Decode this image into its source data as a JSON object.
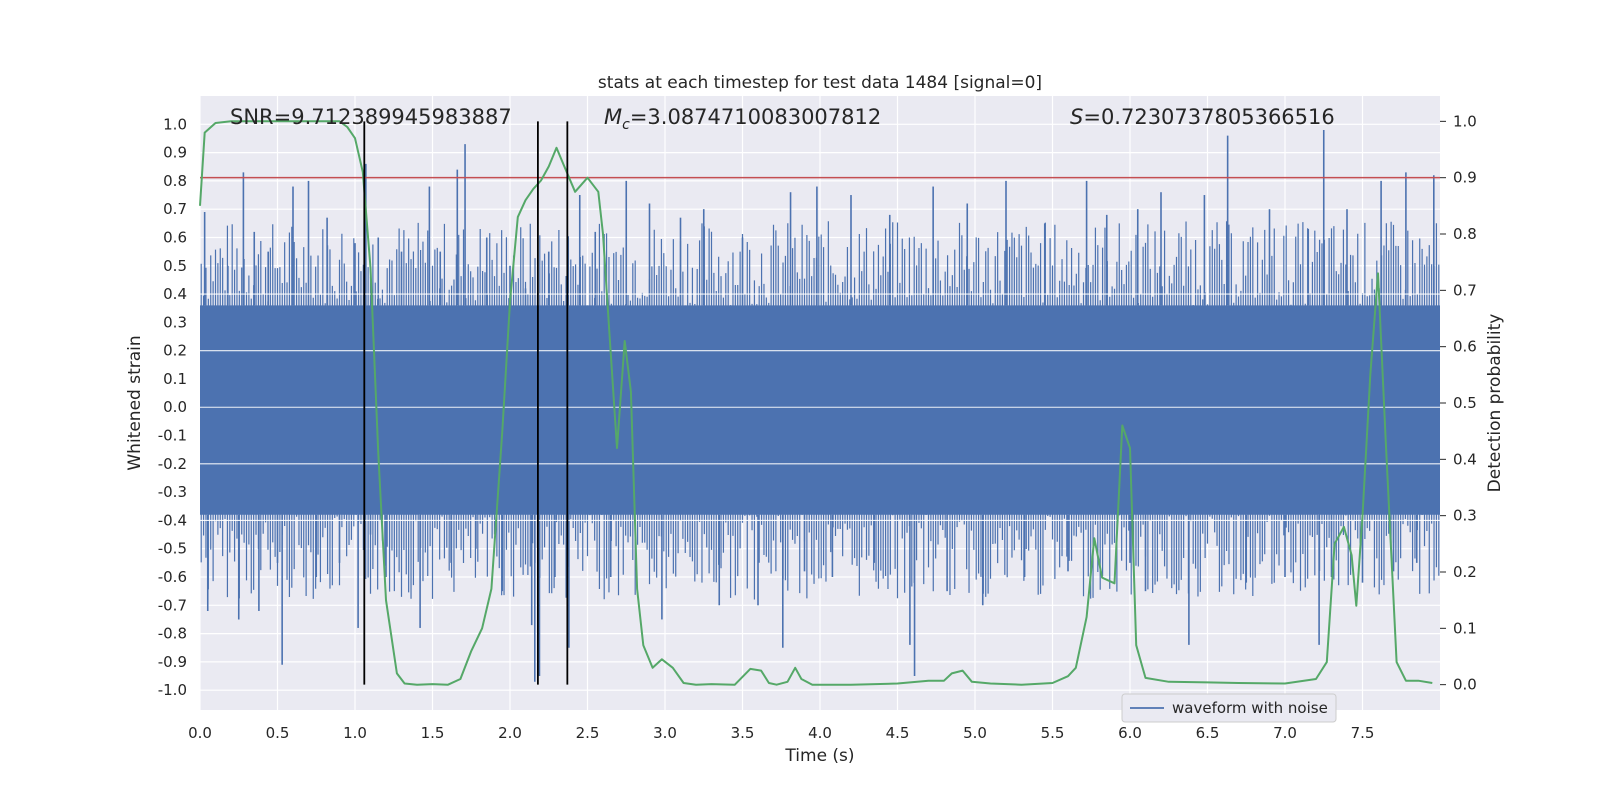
{
  "chart_data": {
    "type": "line",
    "title": "stats at each timestep for test data 1484 [signal=0]",
    "xlabel": "Time (s)",
    "ylabel_left": "Whitened strain",
    "ylabel_right": "Detection probability",
    "xlim": [
      0,
      8
    ],
    "ylim_left": [
      -1.07,
      1.1
    ],
    "ylim_right": [
      -0.045,
      1.045
    ],
    "x_ticks": [
      "0.0",
      "0.5",
      "1.0",
      "1.5",
      "2.0",
      "2.5",
      "3.0",
      "3.5",
      "4.0",
      "4.5",
      "5.0",
      "5.5",
      "6.0",
      "6.5",
      "7.0",
      "7.5"
    ],
    "y_ticks_left": [
      "1.0",
      "0.9",
      "0.8",
      "0.7",
      "0.6",
      "0.5",
      "0.4",
      "0.3",
      "0.2",
      "0.1",
      "0.0",
      "-0.1",
      "-0.2",
      "-0.3",
      "-0.4",
      "-0.5",
      "-0.6",
      "-0.7",
      "-0.8",
      "-0.9",
      "-1.0"
    ],
    "y_ticks_right": [
      "1.0",
      "0.9",
      "0.8",
      "0.7",
      "0.6",
      "0.5",
      "0.4",
      "0.3",
      "0.2",
      "0.1",
      "0.0"
    ],
    "annotations": {
      "snr": "SNR=9.712389945983887",
      "mc_symbol": "M",
      "mc_sub": "c",
      "mc_value": "=3.0874710083007812",
      "s_symbol": "S",
      "s_value": "=0.7230737805366516"
    },
    "threshold": {
      "value": 0.9,
      "axis": "right",
      "color": "#c44e52"
    },
    "vertical_lines": [
      1.06,
      2.18,
      2.37
    ],
    "colors": {
      "waveform": "#4c72b0",
      "probability": "#55a868",
      "threshold": "#c44e52",
      "vlines": "#000000",
      "background": "#eaeaf2",
      "grid": "#ffffff"
    },
    "waveform": {
      "name": "waveform with noise",
      "core_band": [
        -0.38,
        0.36
      ],
      "spikes": [
        [
          0.03,
          0.69
        ],
        [
          0.05,
          -0.72
        ],
        [
          0.18,
          0.5
        ],
        [
          0.25,
          -0.75
        ],
        [
          0.28,
          0.83
        ],
        [
          0.35,
          0.62
        ],
        [
          0.38,
          -0.72
        ],
        [
          0.44,
          0.55
        ],
        [
          0.5,
          -0.55
        ],
        [
          0.53,
          -0.91
        ],
        [
          0.6,
          0.78
        ],
        [
          0.7,
          0.8
        ],
        [
          0.75,
          -0.6
        ],
        [
          0.82,
          0.67
        ],
        [
          0.9,
          -0.55
        ],
        [
          1.0,
          0.58
        ],
        [
          1.02,
          -0.78
        ],
        [
          1.07,
          0.86
        ],
        [
          1.1,
          -0.45
        ],
        [
          1.15,
          0.6
        ],
        [
          1.2,
          -0.6
        ],
        [
          1.3,
          0.55
        ],
        [
          1.42,
          -0.78
        ],
        [
          1.48,
          0.78
        ],
        [
          1.55,
          0.55
        ],
        [
          1.62,
          -0.55
        ],
        [
          1.66,
          0.84
        ],
        [
          1.71,
          0.93
        ],
        [
          1.78,
          -0.5
        ],
        [
          1.85,
          0.6
        ],
        [
          1.95,
          -0.65
        ],
        [
          2.0,
          0.5
        ],
        [
          2.1,
          0.42
        ],
        [
          2.14,
          -0.77
        ],
        [
          2.16,
          -0.97
        ],
        [
          2.19,
          -0.95
        ],
        [
          2.25,
          0.55
        ],
        [
          2.29,
          -0.6
        ],
        [
          2.38,
          -0.85
        ],
        [
          2.45,
          0.75
        ],
        [
          2.55,
          0.62
        ],
        [
          2.65,
          -0.6
        ],
        [
          2.75,
          0.8
        ],
        [
          2.9,
          0.72
        ],
        [
          2.98,
          -0.75
        ],
        [
          3.1,
          0.67
        ],
        [
          3.25,
          0.7
        ],
        [
          3.35,
          -0.7
        ],
        [
          3.5,
          0.6
        ],
        [
          3.6,
          -0.7
        ],
        [
          3.76,
          -0.85
        ],
        [
          3.81,
          0.76
        ],
        [
          3.9,
          -0.58
        ],
        [
          3.98,
          0.78
        ],
        [
          4.08,
          -0.6
        ],
        [
          4.2,
          0.75
        ],
        [
          4.35,
          -0.55
        ],
        [
          4.45,
          0.68
        ],
        [
          4.58,
          -0.84
        ],
        [
          4.61,
          -0.95
        ],
        [
          4.73,
          0.78
        ],
        [
          4.82,
          -0.65
        ],
        [
          4.95,
          0.72
        ],
        [
          5.05,
          -0.7
        ],
        [
          5.2,
          0.8
        ],
        [
          5.32,
          -0.6
        ],
        [
          5.45,
          0.65
        ],
        [
          5.6,
          -0.58
        ],
        [
          5.72,
          0.8
        ],
        [
          5.85,
          0.68
        ],
        [
          6.0,
          -0.55
        ],
        [
          6.05,
          0.7
        ],
        [
          6.1,
          -0.65
        ],
        [
          6.2,
          0.76
        ],
        [
          6.38,
          -0.84
        ],
        [
          6.48,
          0.75
        ],
        [
          6.63,
          0.96
        ],
        [
          6.75,
          -0.62
        ],
        [
          6.9,
          0.7
        ],
        [
          7.0,
          -0.6
        ],
        [
          7.15,
          0.63
        ],
        [
          7.22,
          -0.84
        ],
        [
          7.25,
          0.98
        ],
        [
          7.3,
          -0.6
        ],
        [
          7.4,
          0.7
        ],
        [
          7.5,
          -0.62
        ],
        [
          7.62,
          0.8
        ],
        [
          7.7,
          -0.58
        ],
        [
          7.78,
          0.83
        ],
        [
          7.85,
          -0.55
        ],
        [
          7.96,
          0.82
        ]
      ]
    },
    "probability": {
      "name": "detection probability",
      "points": [
        [
          0.0,
          0.85
        ],
        [
          0.03,
          0.98
        ],
        [
          0.1,
          0.997
        ],
        [
          0.2,
          1.0
        ],
        [
          0.5,
          1.0
        ],
        [
          0.9,
          1.0
        ],
        [
          0.95,
          0.99
        ],
        [
          1.0,
          0.97
        ],
        [
          1.05,
          0.91
        ],
        [
          1.1,
          0.74
        ],
        [
          1.15,
          0.41
        ],
        [
          1.2,
          0.15
        ],
        [
          1.27,
          0.02
        ],
        [
          1.32,
          0.002
        ],
        [
          1.4,
          0.0
        ],
        [
          1.5,
          0.001
        ],
        [
          1.6,
          0.0
        ],
        [
          1.68,
          0.01
        ],
        [
          1.75,
          0.06
        ],
        [
          1.82,
          0.1
        ],
        [
          1.88,
          0.17
        ],
        [
          1.95,
          0.45
        ],
        [
          2.0,
          0.68
        ],
        [
          2.05,
          0.83
        ],
        [
          2.1,
          0.86
        ],
        [
          2.15,
          0.88
        ],
        [
          2.2,
          0.895
        ],
        [
          2.25,
          0.92
        ],
        [
          2.3,
          0.953
        ],
        [
          2.35,
          0.92
        ],
        [
          2.42,
          0.875
        ],
        [
          2.5,
          0.9
        ],
        [
          2.57,
          0.875
        ],
        [
          2.6,
          0.8
        ],
        [
          2.64,
          0.63
        ],
        [
          2.69,
          0.42
        ],
        [
          2.74,
          0.61
        ],
        [
          2.78,
          0.52
        ],
        [
          2.82,
          0.17
        ],
        [
          2.86,
          0.07
        ],
        [
          2.92,
          0.03
        ],
        [
          2.98,
          0.045
        ],
        [
          3.05,
          0.03
        ],
        [
          3.12,
          0.003
        ],
        [
          3.2,
          0.0
        ],
        [
          3.3,
          0.001
        ],
        [
          3.45,
          0.0
        ],
        [
          3.55,
          0.028
        ],
        [
          3.62,
          0.025
        ],
        [
          3.67,
          0.003
        ],
        [
          3.72,
          0.0
        ],
        [
          3.79,
          0.005
        ],
        [
          3.84,
          0.03
        ],
        [
          3.88,
          0.01
        ],
        [
          3.95,
          0.0
        ],
        [
          4.2,
          0.0
        ],
        [
          4.5,
          0.002
        ],
        [
          4.7,
          0.007
        ],
        [
          4.8,
          0.007
        ],
        [
          4.85,
          0.02
        ],
        [
          4.92,
          0.025
        ],
        [
          4.98,
          0.005
        ],
        [
          5.1,
          0.002
        ],
        [
          5.3,
          0.0
        ],
        [
          5.5,
          0.003
        ],
        [
          5.6,
          0.015
        ],
        [
          5.65,
          0.03
        ],
        [
          5.72,
          0.12
        ],
        [
          5.77,
          0.26
        ],
        [
          5.82,
          0.19
        ],
        [
          5.9,
          0.18
        ],
        [
          5.95,
          0.46
        ],
        [
          6.0,
          0.42
        ],
        [
          6.04,
          0.07
        ],
        [
          6.1,
          0.012
        ],
        [
          6.25,
          0.005
        ],
        [
          6.5,
          0.004
        ],
        [
          6.7,
          0.003
        ],
        [
          7.0,
          0.002
        ],
        [
          7.2,
          0.01
        ],
        [
          7.27,
          0.04
        ],
        [
          7.32,
          0.25
        ],
        [
          7.38,
          0.28
        ],
        [
          7.43,
          0.23
        ],
        [
          7.46,
          0.14
        ],
        [
          7.5,
          0.3
        ],
        [
          7.55,
          0.55
        ],
        [
          7.6,
          0.73
        ],
        [
          7.65,
          0.43
        ],
        [
          7.72,
          0.04
        ],
        [
          7.78,
          0.007
        ],
        [
          7.86,
          0.007
        ],
        [
          7.95,
          0.003
        ]
      ]
    },
    "legend": {
      "label": "waveform with noise",
      "location": "lower-right"
    }
  }
}
